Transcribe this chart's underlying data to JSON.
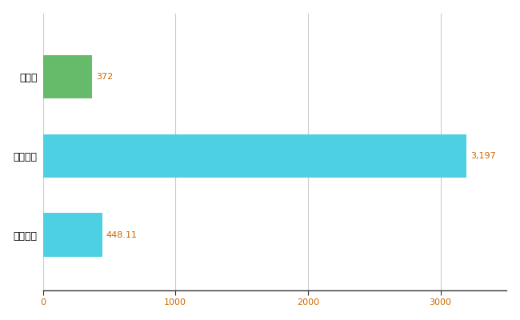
{
  "categories": [
    "宮城県",
    "全国最大",
    "全国平均"
  ],
  "values": [
    372,
    3197,
    448.11
  ],
  "bar_colors": [
    "#66bb6a",
    "#4dd0e1",
    "#4dd0e1"
  ],
  "value_labels": [
    "372",
    "3,197",
    "448.11"
  ],
  "xlim": [
    0,
    3500
  ],
  "xticks": [
    0,
    1000,
    2000,
    3000
  ],
  "xtick_labels": [
    "0",
    "1000",
    "2000",
    "3000"
  ],
  "background_color": "#ffffff",
  "grid_color": "#cccccc",
  "label_color": "#cc6600",
  "tick_label_color": "#cc6600",
  "bar_height": 0.55,
  "figsize": [
    6.5,
    4.0
  ],
  "dpi": 100
}
